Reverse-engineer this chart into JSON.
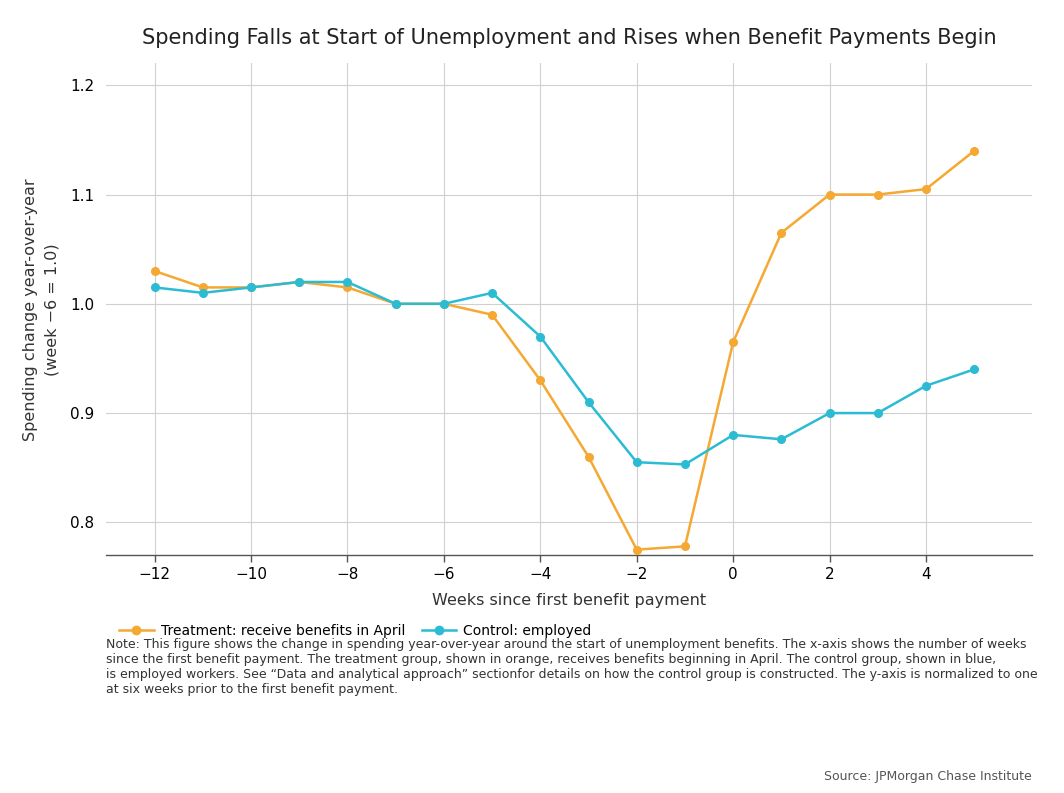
{
  "title": "Spending Falls at Start of Unemployment and Rises when Benefit Payments Begin",
  "xlabel": "Weeks since first benefit payment",
  "ylabel": "Spending change year-over-year\n(week −6 = 1.0)",
  "treatment_x": [
    -12,
    -11,
    -10,
    -9,
    -8,
    -7,
    -6,
    -5,
    -4,
    -3,
    -2,
    -1,
    0,
    1,
    2,
    3,
    4,
    5
  ],
  "treatment_y": [
    1.03,
    1.015,
    1.015,
    1.02,
    1.015,
    1.0,
    1.0,
    0.99,
    0.93,
    0.86,
    0.775,
    0.778,
    0.965,
    1.065,
    1.1,
    1.1,
    1.105,
    1.14
  ],
  "control_x": [
    -12,
    -11,
    -10,
    -9,
    -8,
    -7,
    -6,
    -5,
    -4,
    -3,
    -2,
    -1,
    0,
    1,
    2,
    3,
    4,
    5
  ],
  "control_y": [
    1.015,
    1.01,
    1.015,
    1.02,
    1.02,
    1.0,
    1.0,
    1.01,
    0.97,
    0.91,
    0.855,
    0.853,
    0.88,
    0.876,
    0.9,
    0.9,
    0.925,
    0.94
  ],
  "treatment_color": "#f5a832",
  "control_color": "#2bbcd4",
  "ylim": [
    0.77,
    1.22
  ],
  "yticks": [
    0.8,
    0.9,
    1.0,
    1.1,
    1.2
  ],
  "xticks": [
    -12,
    -10,
    -8,
    -6,
    -4,
    -2,
    0,
    2,
    4
  ],
  "xlim": [
    -13.0,
    6.2
  ],
  "legend_treatment": "Treatment: receive benefits in April",
  "legend_control": "Control: employed",
  "note_text": "Note: This figure shows the change in spending year-over-year around the start of unemployment benefits. The x-axis shows the number of weeks\nsince the first benefit payment. The treatment group, shown in orange, receives benefits beginning in April. The control group, shown in blue,\nis employed workers. See “Data and analytical approach” sectionfor details on how the control group is constructed. The y-axis is normalized to one\nat six weeks prior to the first benefit payment.",
  "source_text": "Source: JPMorgan Chase Institute",
  "background_color": "#ffffff",
  "grid_color": "#d0d0d0",
  "title_fontsize": 15,
  "label_fontsize": 11.5,
  "tick_fontsize": 11,
  "note_fontsize": 9,
  "source_fontsize": 9,
  "legend_fontsize": 10,
  "marker_size": 5.5,
  "linewidth": 1.8
}
